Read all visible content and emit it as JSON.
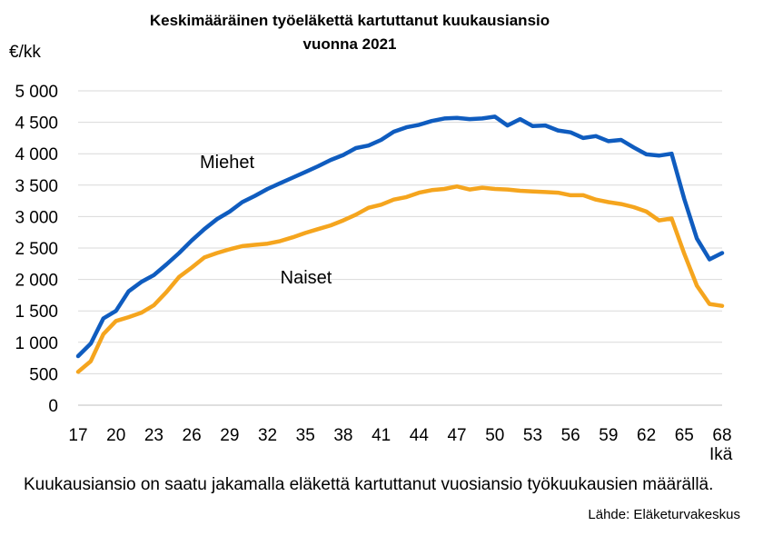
{
  "title_line1": "Keskimääräinen työeläkettä kartuttanut kuukausiansio",
  "title_line2": "vuonna 2021",
  "y_unit": "€/kk",
  "x_unit": "Ikä",
  "note": "Kuukausiansio on saatu jakamalla eläkettä kartuttanut vuosiansio työkuukausien määrällä.",
  "source": "Lähde: Eläketurvakeskus",
  "colors": {
    "men": "#0f5cbf",
    "women": "#f5a51e",
    "grid": "#d9d9d9",
    "axis": "#bfbfbf"
  },
  "chart_data": {
    "type": "line",
    "title": "Keskimääräinen työeläkettä kartuttanut kuukausiansio vuonna 2021",
    "ylabel": "€/kk",
    "xlabel": "Ikä",
    "ylim": [
      0,
      5000
    ],
    "xlim": [
      17,
      68
    ],
    "grid": true,
    "y_ticks": [
      "0",
      "500",
      "1 000",
      "1 500",
      "2 000",
      "2 500",
      "3 000",
      "3 500",
      "4 000",
      "4 500",
      "5 000"
    ],
    "x_ticks": [
      "17",
      "20",
      "23",
      "26",
      "29",
      "32",
      "35",
      "38",
      "41",
      "44",
      "47",
      "50",
      "53",
      "56",
      "59",
      "62",
      "65",
      "68"
    ],
    "x": [
      17,
      18,
      19,
      20,
      21,
      22,
      23,
      24,
      25,
      26,
      27,
      28,
      29,
      30,
      31,
      32,
      33,
      34,
      35,
      36,
      37,
      38,
      39,
      40,
      41,
      42,
      43,
      44,
      45,
      46,
      47,
      48,
      49,
      50,
      51,
      52,
      53,
      54,
      55,
      56,
      57,
      58,
      59,
      60,
      61,
      62,
      63,
      64,
      65,
      66,
      67,
      68
    ],
    "series": [
      {
        "name": "Miehet",
        "color": "#0f5cbf",
        "values": [
          780,
          980,
          1380,
          1500,
          1810,
          1960,
          2070,
          2240,
          2420,
          2620,
          2800,
          2960,
          3080,
          3230,
          3330,
          3440,
          3530,
          3620,
          3710,
          3800,
          3900,
          3980,
          4090,
          4130,
          4220,
          4350,
          4420,
          4460,
          4520,
          4560,
          4570,
          4550,
          4560,
          4590,
          4450,
          4550,
          4440,
          4450,
          4370,
          4340,
          4250,
          4280,
          4200,
          4220,
          4100,
          3990,
          3970,
          4000,
          3280,
          2650,
          2320,
          2420
        ]
      },
      {
        "name": "Naiset",
        "color": "#f5a51e",
        "values": [
          530,
          700,
          1130,
          1340,
          1400,
          1470,
          1590,
          1800,
          2040,
          2190,
          2350,
          2420,
          2480,
          2530,
          2550,
          2570,
          2610,
          2670,
          2740,
          2800,
          2860,
          2940,
          3030,
          3140,
          3190,
          3270,
          3310,
          3380,
          3420,
          3440,
          3480,
          3430,
          3460,
          3440,
          3430,
          3410,
          3400,
          3390,
          3380,
          3340,
          3340,
          3270,
          3230,
          3200,
          3150,
          3080,
          2940,
          2970,
          2410,
          1900,
          1610,
          1580
        ]
      }
    ]
  }
}
